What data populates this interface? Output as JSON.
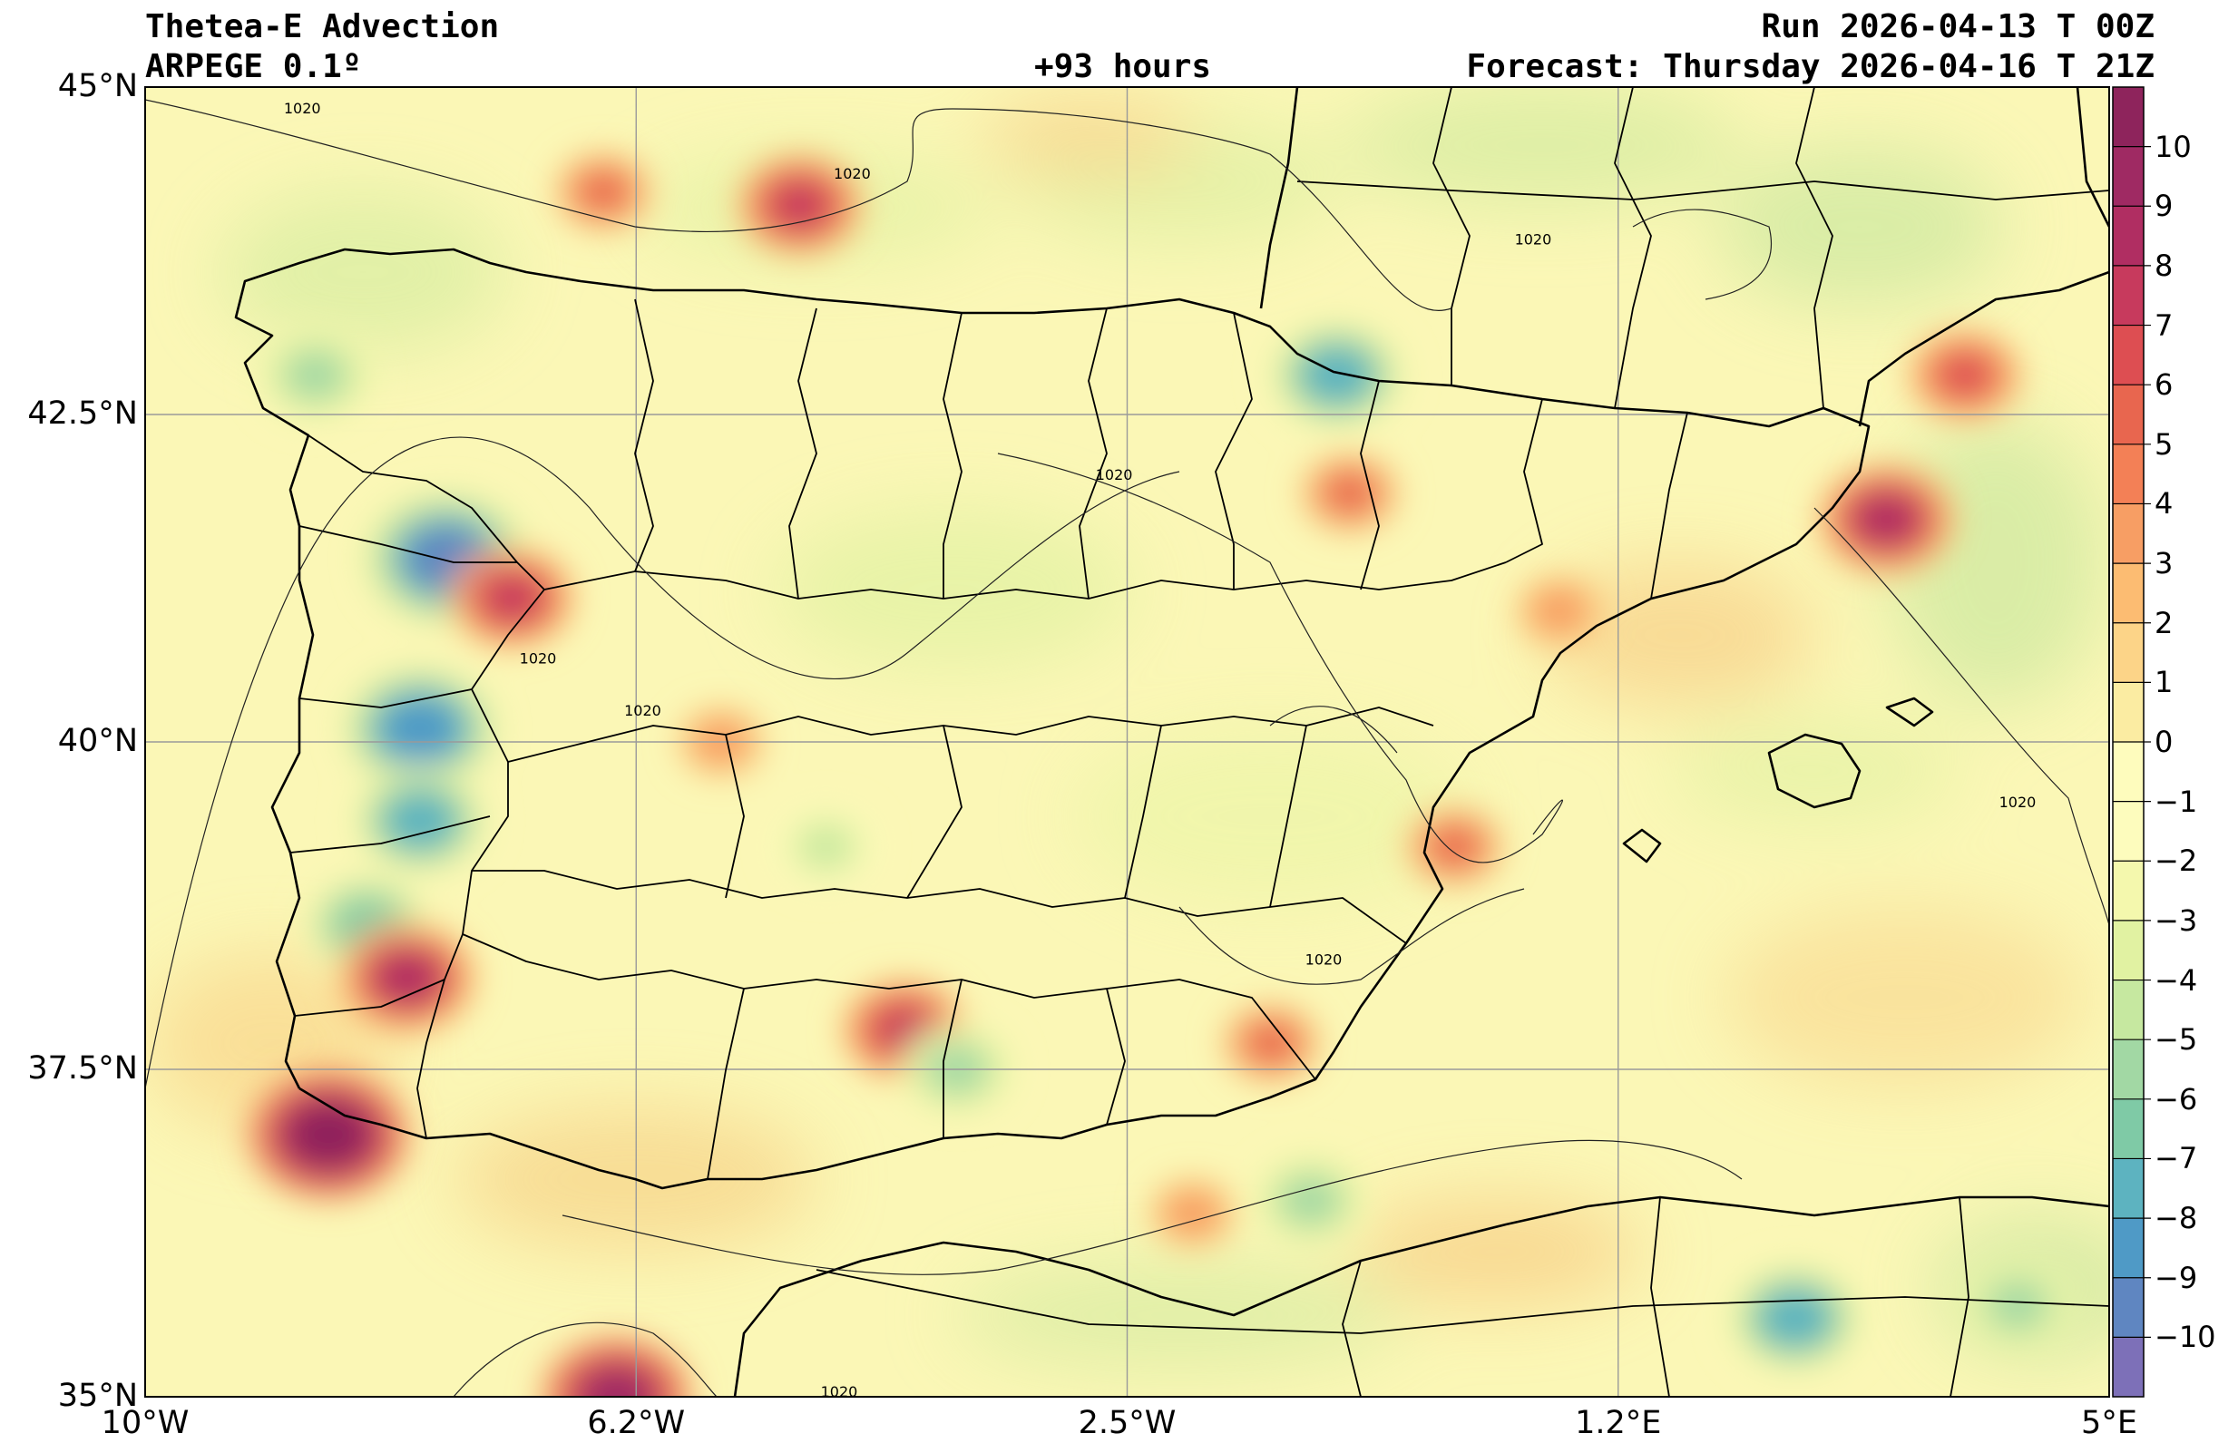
{
  "header": {
    "title": "Thetea-E Advection",
    "model": "ARPEGE 0.1º",
    "lead_time": "+93 hours",
    "run": "Run 2026-04-13 T 00Z",
    "forecast": "Forecast: Thursday 2026-04-16 T 21Z"
  },
  "map": {
    "extent": {
      "lon_min": -10,
      "lon_max": 5,
      "lat_min": 35,
      "lat_max": 45
    },
    "lat_ticks": [
      {
        "value": 45,
        "label": "45°N"
      },
      {
        "value": 42.5,
        "label": "42.5°N"
      },
      {
        "value": 40,
        "label": "40°N"
      },
      {
        "value": 37.5,
        "label": "37.5°N"
      },
      {
        "value": 35,
        "label": "35°N"
      }
    ],
    "lon_ticks": [
      {
        "value": -10,
        "label": "10°W"
      },
      {
        "value": -6.25,
        "label": "6.2°W"
      },
      {
        "value": -2.5,
        "label": "2.5°W"
      },
      {
        "value": 1.25,
        "label": "1.2°E"
      },
      {
        "value": 5,
        "label": "5°E"
      }
    ],
    "isobar_labels": [
      {
        "text": "1020",
        "lon": -8.8,
        "lat": 44.8
      },
      {
        "text": "1020",
        "lon": -4.6,
        "lat": 44.3
      },
      {
        "text": "1020",
        "lon": 0.6,
        "lat": 43.8
      },
      {
        "text": "1020",
        "lon": -2.6,
        "lat": 42.0
      },
      {
        "text": "1020",
        "lon": -6.2,
        "lat": 40.2
      },
      {
        "text": "1020",
        "lon": -7.0,
        "lat": 40.6
      },
      {
        "text": "1020",
        "lon": 4.3,
        "lat": 39.5
      },
      {
        "text": "1020",
        "lon": -1.0,
        "lat": 38.3
      },
      {
        "text": "1020",
        "lon": -4.7,
        "lat": 35.0
      }
    ],
    "anomalies": [
      {
        "lon": -8.6,
        "lat": 37.0,
        "value": 10
      },
      {
        "lon": -7.7,
        "lat": 41.4,
        "value": -10
      },
      {
        "lon": -7.9,
        "lat": 40.1,
        "value": -9
      },
      {
        "lon": -7.9,
        "lat": 39.4,
        "value": -8
      },
      {
        "lon": -8.3,
        "lat": 38.6,
        "value": -7
      },
      {
        "lon": -8.0,
        "lat": 38.2,
        "value": 8
      },
      {
        "lon": -7.2,
        "lat": 41.1,
        "value": 7
      },
      {
        "lon": -4.2,
        "lat": 37.8,
        "value": 7
      },
      {
        "lon": -3.8,
        "lat": 37.5,
        "value": -6
      },
      {
        "lon": 3.3,
        "lat": 41.7,
        "value": 8
      },
      {
        "lon": 3.9,
        "lat": 42.8,
        "value": 6
      },
      {
        "lon": -0.9,
        "lat": 42.8,
        "value": -8
      },
      {
        "lon": -5.0,
        "lat": 44.1,
        "value": 7
      },
      {
        "lon": -6.4,
        "lat": 35.0,
        "value": 9
      },
      {
        "lon": -1.1,
        "lat": 36.5,
        "value": -6
      },
      {
        "lon": 2.6,
        "lat": 35.6,
        "value": -8
      },
      {
        "lon": 4.3,
        "lat": 35.7,
        "value": -6
      },
      {
        "lon": -0.8,
        "lat": 41.9,
        "value": 5
      },
      {
        "lon": 0.8,
        "lat": 41.0,
        "value": 4
      },
      {
        "lon": -6.5,
        "lat": 44.2,
        "value": 5
      },
      {
        "lon": -8.7,
        "lat": 42.8,
        "value": -6
      },
      {
        "lon": -1.4,
        "lat": 37.7,
        "value": 5
      },
      {
        "lon": 0.0,
        "lat": 39.2,
        "value": 5
      },
      {
        "lon": -2.0,
        "lat": 36.4,
        "value": 4
      },
      {
        "lon": -5.6,
        "lat": 40.0,
        "value": 4
      },
      {
        "lon": -4.8,
        "lat": 39.2,
        "value": -5
      }
    ]
  },
  "colorbar": {
    "min": -11,
    "max": 11,
    "labels": [
      {
        "value": 10,
        "label": "10"
      },
      {
        "value": 9,
        "label": "9"
      },
      {
        "value": 8,
        "label": "8"
      },
      {
        "value": 7,
        "label": "7"
      },
      {
        "value": 6,
        "label": "6"
      },
      {
        "value": 5,
        "label": "5"
      },
      {
        "value": 4,
        "label": "4"
      },
      {
        "value": 3,
        "label": "3"
      },
      {
        "value": 2,
        "label": "2"
      },
      {
        "value": 1,
        "label": "1"
      },
      {
        "value": 0,
        "label": "0"
      },
      {
        "value": -1,
        "label": "−1"
      },
      {
        "value": -2,
        "label": "−2"
      },
      {
        "value": -3,
        "label": "−3"
      },
      {
        "value": -4,
        "label": "−4"
      },
      {
        "value": -5,
        "label": "−5"
      },
      {
        "value": -6,
        "label": "−6"
      },
      {
        "value": -7,
        "label": "−7"
      },
      {
        "value": -8,
        "label": "−8"
      },
      {
        "value": -9,
        "label": "−9"
      },
      {
        "value": -10,
        "label": "−10"
      }
    ],
    "colors": [
      "#7d70b8",
      "#5f86c1",
      "#4f9ac6",
      "#5db3c0",
      "#7fcaa6",
      "#a2d8a4",
      "#c6e8a0",
      "#e1f2a2",
      "#f4f8ad",
      "#fdfcbd",
      "#fefcbd",
      "#fbeca2",
      "#fcd488",
      "#fcbc72",
      "#f79e64",
      "#f38056",
      "#e8664f",
      "#dd4e52",
      "#c73a5d",
      "#b02e62",
      "#9f2a63",
      "#8e245c"
    ]
  }
}
